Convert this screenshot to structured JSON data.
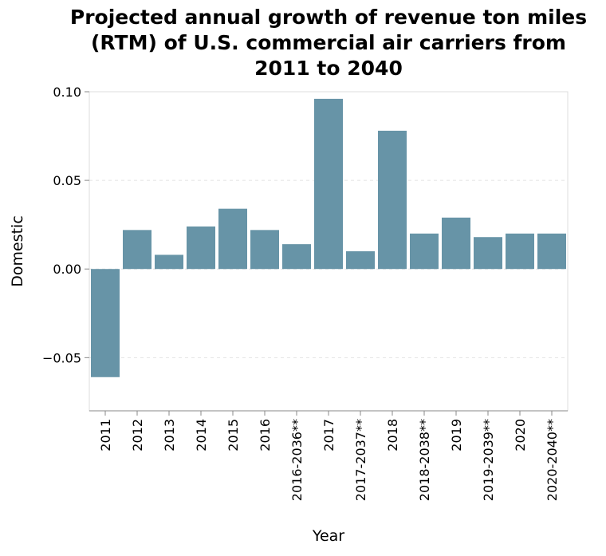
{
  "chart_data": {
    "type": "bar",
    "title": "Projected annual growth of revenue ton miles (RTM) of U.S. commercial air carriers from 2011 to 2040",
    "title_lines": [
      "Projected annual growth of revenue ton miles",
      "(RTM) of U.S. commercial air carriers from",
      "2011 to 2040"
    ],
    "xlabel": "Year",
    "ylabel": "Domestic",
    "categories": [
      "2011",
      "2012",
      "2013",
      "2014",
      "2015",
      "2016",
      "2016-2036**",
      "2017",
      "2017-2037**",
      "2018",
      "2018-2038**",
      "2019",
      "2019-2039**",
      "2020",
      "2020-2040**"
    ],
    "values": [
      -0.061,
      0.022,
      0.008,
      0.024,
      0.034,
      0.022,
      0.014,
      0.096,
      0.01,
      0.078,
      0.02,
      0.029,
      0.018,
      0.02,
      0.02
    ],
    "ylim": [
      -0.08,
      0.1
    ],
    "yticks": [
      0.1,
      0.05,
      0.0,
      -0.05
    ],
    "ytick_labels": [
      "0.10",
      "0.05",
      "0.00",
      "−0.05"
    ],
    "grid": true,
    "bar_color": "#6794a7"
  }
}
